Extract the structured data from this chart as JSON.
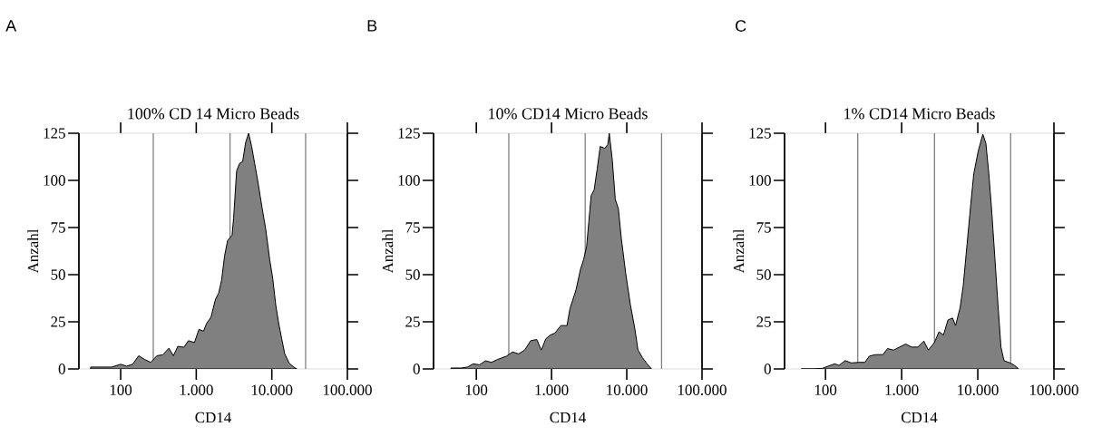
{
  "chart_data": [
    {
      "type": "area",
      "title": "100% CD 14 Micro Beads",
      "xlabel": "CD14",
      "ylabel": "Anzahl",
      "annotations": [
        "A"
      ],
      "log": "x",
      "xlim": [
        28,
        100000
      ],
      "ylim": [
        0,
        125
      ],
      "xticks": [
        100,
        {
          "value": 1000,
          "label": "1.000"
        },
        {
          "value": 10000,
          "label": "10.000"
        },
        {
          "value": 100000,
          "label": "100.000"
        }
      ],
      "yticks": [
        0,
        25,
        50,
        75,
        100,
        125
      ],
      "ref_lines": [
        {
          "axis": "x",
          "value": 270,
          "color": "#808080"
        },
        {
          "axis": "x",
          "value": 2800,
          "color": "#808080"
        },
        {
          "axis": "x",
          "value": 28000,
          "color": "#808080"
        }
      ],
      "series": [
        {
          "color": "#808080",
          "x": [
            40,
            53,
            76,
            100,
            120,
            144,
            173,
            208,
            250,
            301,
            361,
            434,
            498,
            571,
            687,
            788,
            946,
            1086,
            1247,
            1366,
            1567,
            1799,
            1972,
            2163,
            2371,
            2596,
            2981,
            3121,
            3420,
            3749,
            4111,
            4498,
            4932,
            5408,
            5929,
            6501,
            7464,
            8318,
            9376,
            10280,
            11270,
            12360,
            13520,
            14830,
            17020,
            19540,
            21420
          ],
          "values": [
            1,
            1,
            1,
            2.5,
            1.5,
            2.5,
            7,
            5,
            3.5,
            7,
            7.5,
            11,
            7,
            12,
            11.5,
            15,
            14,
            21,
            20,
            24,
            27.5,
            37,
            40,
            47,
            60,
            68,
            71,
            80,
            105,
            109,
            110,
            120,
            125,
            118,
            109,
            100,
            85,
            74,
            58,
            48,
            34,
            24,
            16,
            8,
            3,
            1,
            0
          ]
        }
      ]
    },
    {
      "type": "area",
      "title": "10% CD14 Micro Beads",
      "xlabel": "CD14",
      "ylabel": "Anzahl",
      "annotations": [
        "B"
      ],
      "log": "x",
      "xlim": [
        27,
        100000
      ],
      "ylim": [
        0,
        125
      ],
      "xticks": [
        100,
        {
          "value": 1000,
          "label": "1.000"
        },
        {
          "value": 10000,
          "label": "10.000"
        },
        {
          "value": 100000,
          "label": "100.000"
        }
      ],
      "yticks": [
        0,
        25,
        50,
        75,
        100,
        125
      ],
      "ref_lines": [
        {
          "axis": "x",
          "value": 270,
          "color": "#808080"
        },
        {
          "axis": "x",
          "value": 2800,
          "color": "#808080"
        },
        {
          "axis": "x",
          "value": 29000,
          "color": "#808080"
        }
      ],
      "series": [
        {
          "color": "#808080",
          "x": [
            46,
            63,
            76,
            91,
            110,
            132,
            159,
            191,
            252,
            303,
            365,
            439,
            528,
            636,
            730,
            839,
            964,
            1107,
            1331,
            1603,
            1757,
            2114,
            2430,
            2667,
            2925,
            3361,
            3684,
            4040,
            4433,
            5093,
            5585,
            5848,
            6412,
            7031,
            7727,
            8472,
            9727,
            11170,
            12830,
            14090,
            16180,
            18580,
            21330
          ],
          "values": [
            0.5,
            0.5,
            1,
            2.7,
            2.2,
            4.3,
            3.5,
            5,
            6.8,
            9,
            8,
            10,
            15,
            15.6,
            10,
            16,
            18,
            19,
            23,
            23,
            32,
            42,
            53,
            58,
            65,
            92,
            95,
            106,
            118,
            117,
            119,
            125,
            111,
            90,
            85,
            69,
            50,
            34,
            21,
            10,
            6,
            2.7,
            0
          ]
        }
      ]
    },
    {
      "type": "area",
      "title": "1% CD14 Micro Beads",
      "xlabel": "CD14",
      "ylabel": "Anzahl",
      "annotations": [
        "C"
      ],
      "log": "x",
      "xlim": [
        29,
        100000
      ],
      "ylim": [
        0,
        125
      ],
      "xticks": [
        100,
        {
          "value": 1000,
          "label": "1.000"
        },
        {
          "value": 10000,
          "label": "10.000"
        },
        {
          "value": 100000,
          "label": "100.000"
        }
      ],
      "yticks": [
        0,
        25,
        50,
        75,
        100,
        125
      ],
      "ref_lines": [
        {
          "axis": "x",
          "value": 265,
          "color": "#808080"
        },
        {
          "axis": "x",
          "value": 2700,
          "color": "#808080"
        },
        {
          "axis": "x",
          "value": 27000,
          "color": "#808080"
        }
      ],
      "series": [
        {
          "color": "#808080",
          "x": [
            48,
            69,
            91,
            110,
            132,
            151,
            181,
            218,
            274,
            328,
            377,
            453,
            569,
            652,
            783,
            940,
            1130,
            1356,
            1629,
            1955,
            2244,
            2692,
            3090,
            3542,
            4061,
            4665,
            5106,
            5863,
            6427,
            7365,
            8075,
            8851,
            10140,
            11650,
            12760,
            13970,
            15310,
            16790,
            18400,
            20140,
            22080,
            26490,
            30400,
            34300
          ],
          "values": [
            0,
            0,
            0.3,
            1.6,
            2.7,
            1.9,
            4.4,
            3.2,
            3.5,
            3.5,
            6.8,
            7.6,
            7.6,
            10.8,
            10,
            11.6,
            13.2,
            11.6,
            11.6,
            14.8,
            10,
            14,
            19.7,
            18,
            26,
            27,
            23,
            32.6,
            43.9,
            69.7,
            87,
            103.5,
            115.6,
            124.5,
            119.7,
            103.5,
            82.6,
            58.4,
            34.2,
            11.6,
            4.4,
            3.2,
            1.9,
            0
          ]
        }
      ]
    }
  ]
}
